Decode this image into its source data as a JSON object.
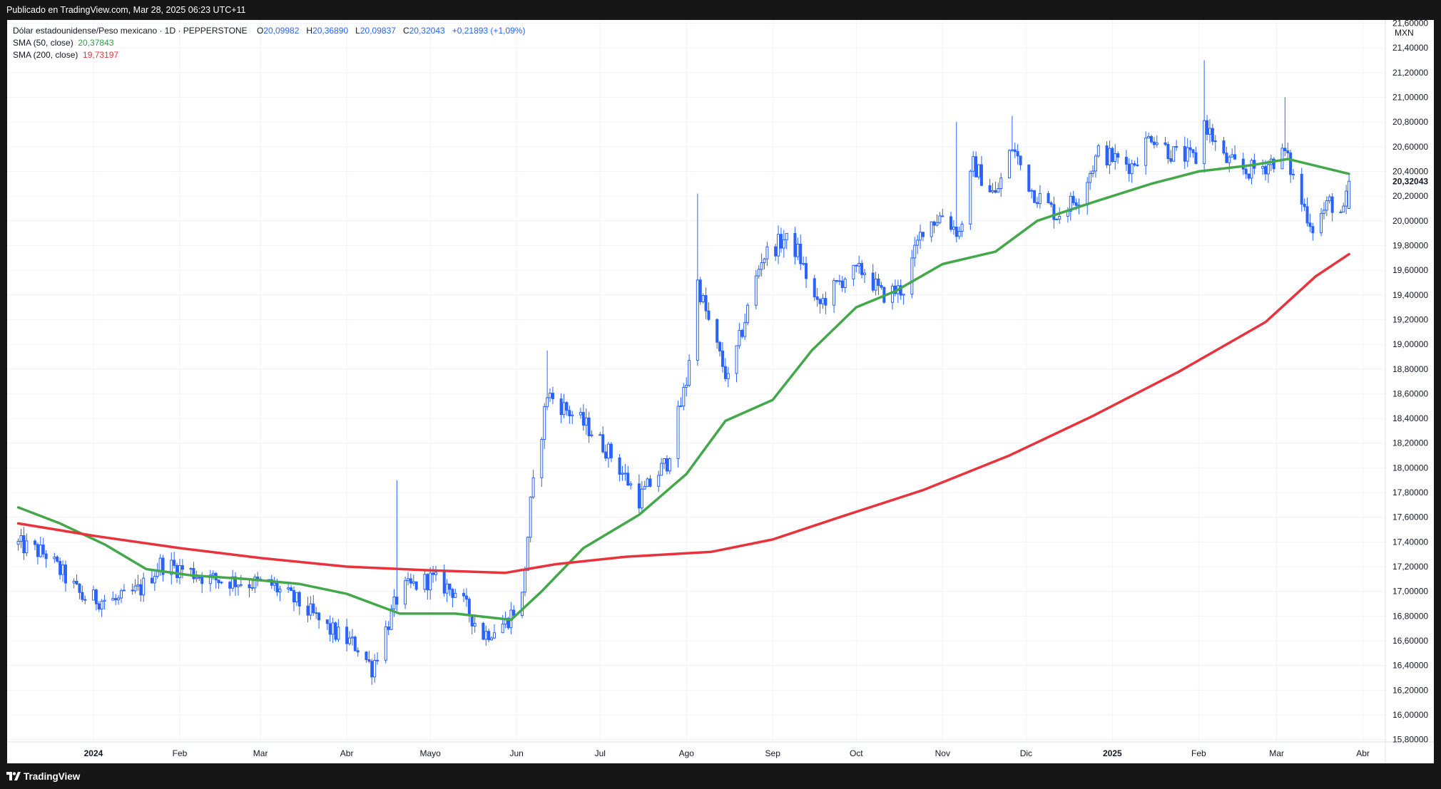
{
  "header": {
    "published": "Publicado en TradingView.com, Mar 28, 2025 06:23 UTC+11"
  },
  "legend": {
    "symbol": "Dólar estadounidense/Peso mexicano · 1D · PEPPERSTONE",
    "o_label": "O",
    "o_value": "20,09982",
    "h_label": "H",
    "h_value": "20,36890",
    "l_label": "L",
    "l_value": "20,09837",
    "c_label": "C",
    "c_value": "20,32043",
    "change": "+0,21893 (+1,09%)",
    "sma50_label": "SMA (50, close)",
    "sma50_value": "20,37843",
    "sma200_label": "SMA (200, close)",
    "sma200_value": "19,73197"
  },
  "footer": {
    "brand": "TradingView"
  },
  "colors": {
    "candle": "#2962ff",
    "sma50": "#43a84a",
    "sma200": "#e8323c",
    "grid": "#f0f3fa",
    "price_label_bg": "#ffffff"
  },
  "chart_data": {
    "type": "candlestick",
    "currency": "MXN",
    "y_ticks": [
      "15,80000",
      "16,00000",
      "16,20000",
      "16,40000",
      "16,60000",
      "16,80000",
      "17,00000",
      "17,20000",
      "17,40000",
      "17,60000",
      "17,80000",
      "18,00000",
      "18,20000",
      "18,40000",
      "18,60000",
      "18,80000",
      "19,00000",
      "19,20000",
      "19,40000",
      "19,60000",
      "19,80000",
      "20,00000",
      "20,20000",
      "20,40000",
      "20,60000",
      "20,80000",
      "21,00000",
      "21,20000",
      "21,40000",
      "21,60000"
    ],
    "ylim": [
      15.75,
      21.75
    ],
    "x_ticks": [
      {
        "label": "2024",
        "date": "2024-01-01",
        "bold": true
      },
      {
        "label": "Feb",
        "date": "2024-02-01"
      },
      {
        "label": "Mar",
        "date": "2024-03-01"
      },
      {
        "label": "Abr",
        "date": "2024-04-01"
      },
      {
        "label": "Mayo",
        "date": "2024-05-01"
      },
      {
        "label": "Jun",
        "date": "2024-06-01"
      },
      {
        "label": "Jul",
        "date": "2024-07-01"
      },
      {
        "label": "Ago",
        "date": "2024-08-01"
      },
      {
        "label": "Sep",
        "date": "2024-09-01"
      },
      {
        "label": "Oct",
        "date": "2024-10-01"
      },
      {
        "label": "Nov",
        "date": "2024-11-01"
      },
      {
        "label": "Dic",
        "date": "2024-12-01"
      },
      {
        "label": "2025",
        "date": "2025-01-01",
        "bold": true
      },
      {
        "label": "Feb",
        "date": "2025-02-01"
      },
      {
        "label": "Mar",
        "date": "2025-03-01"
      },
      {
        "label": "Abr",
        "date": "2025-04-01"
      }
    ],
    "last_price_label": "20,32043",
    "last_price": 20.32043,
    "close_path": [
      [
        "2023-12-05",
        17.38
      ],
      [
        "2023-12-15",
        17.3
      ],
      [
        "2023-12-28",
        16.95
      ],
      [
        "2024-01-10",
        16.92
      ],
      [
        "2024-01-18",
        17.02
      ],
      [
        "2024-01-25",
        17.22
      ],
      [
        "2024-02-02",
        17.18
      ],
      [
        "2024-02-12",
        17.1
      ],
      [
        "2024-02-22",
        17.08
      ],
      [
        "2024-03-05",
        17.05
      ],
      [
        "2024-03-15",
        16.9
      ],
      [
        "2024-03-25",
        16.7
      ],
      [
        "2024-04-05",
        16.55
      ],
      [
        "2024-04-10",
        16.38
      ],
      [
        "2024-04-20",
        17.0
      ],
      [
        "2024-05-01",
        17.1
      ],
      [
        "2024-05-10",
        17.0
      ],
      [
        "2024-05-20",
        16.65
      ],
      [
        "2024-05-28",
        16.75
      ],
      [
        "2024-06-03",
        16.95
      ],
      [
        "2024-06-06",
        17.7
      ],
      [
        "2024-06-12",
        18.6
      ],
      [
        "2024-06-20",
        18.45
      ],
      [
        "2024-06-28",
        18.3
      ],
      [
        "2024-07-05",
        18.1
      ],
      [
        "2024-07-15",
        17.75
      ],
      [
        "2024-07-25",
        18.05
      ],
      [
        "2024-08-01",
        18.7
      ],
      [
        "2024-08-05",
        19.5
      ],
      [
        "2024-08-10",
        19.1
      ],
      [
        "2024-08-16",
        18.7
      ],
      [
        "2024-08-22",
        19.2
      ],
      [
        "2024-08-28",
        19.7
      ],
      [
        "2024-09-05",
        19.85
      ],
      [
        "2024-09-10",
        19.75
      ],
      [
        "2024-09-17",
        19.3
      ],
      [
        "2024-09-27",
        19.55
      ],
      [
        "2024-10-04",
        19.6
      ],
      [
        "2024-10-10",
        19.4
      ],
      [
        "2024-10-18",
        19.45
      ],
      [
        "2024-10-25",
        19.95
      ],
      [
        "2024-11-01",
        20.05
      ],
      [
        "2024-11-07",
        19.9
      ],
      [
        "2024-11-12",
        20.45
      ],
      [
        "2024-11-20",
        20.2
      ],
      [
        "2024-11-26",
        20.6
      ],
      [
        "2024-12-03",
        20.25
      ],
      [
        "2024-12-12",
        20.05
      ],
      [
        "2024-12-20",
        20.2
      ],
      [
        "2024-12-27",
        20.55
      ],
      [
        "2025-01-08",
        20.45
      ],
      [
        "2025-01-15",
        20.7
      ],
      [
        "2025-01-22",
        20.55
      ],
      [
        "2025-01-31",
        20.5
      ],
      [
        "2025-02-03",
        20.8
      ],
      [
        "2025-02-10",
        20.5
      ],
      [
        "2025-02-18",
        20.4
      ],
      [
        "2025-02-25",
        20.45
      ],
      [
        "2025-03-04",
        20.55
      ],
      [
        "2025-03-10",
        20.15
      ],
      [
        "2025-03-14",
        19.95
      ],
      [
        "2025-03-20",
        20.15
      ],
      [
        "2025-03-25",
        20.05
      ],
      [
        "2025-03-27",
        20.32
      ]
    ],
    "spikes": [
      {
        "date": "2024-04-19",
        "high": 17.9
      },
      {
        "date": "2024-08-05",
        "high": 20.22
      },
      {
        "date": "2024-06-12",
        "high": 18.95
      },
      {
        "date": "2025-02-03",
        "high": 21.3
      },
      {
        "date": "2025-03-04",
        "high": 21.0
      },
      {
        "date": "2024-11-06",
        "high": 20.8
      },
      {
        "date": "2024-11-26",
        "high": 20.85
      }
    ],
    "series": [
      {
        "name": "SMA (50, close)",
        "color": "#43a84a",
        "points": [
          [
            "2023-12-05",
            17.68
          ],
          [
            "2023-12-20",
            17.55
          ],
          [
            "2024-01-05",
            17.38
          ],
          [
            "2024-01-20",
            17.18
          ],
          [
            "2024-02-05",
            17.13
          ],
          [
            "2024-02-25",
            17.1
          ],
          [
            "2024-03-15",
            17.06
          ],
          [
            "2024-04-01",
            16.98
          ],
          [
            "2024-04-20",
            16.82
          ],
          [
            "2024-05-10",
            16.82
          ],
          [
            "2024-05-30",
            16.77
          ],
          [
            "2024-06-10",
            17.0
          ],
          [
            "2024-06-25",
            17.35
          ],
          [
            "2024-07-15",
            17.62
          ],
          [
            "2024-08-01",
            17.95
          ],
          [
            "2024-08-15",
            18.38
          ],
          [
            "2024-09-01",
            18.55
          ],
          [
            "2024-09-15",
            18.95
          ],
          [
            "2024-10-01",
            19.3
          ],
          [
            "2024-10-15",
            19.43
          ],
          [
            "2024-11-01",
            19.65
          ],
          [
            "2024-11-20",
            19.75
          ],
          [
            "2024-12-05",
            20.0
          ],
          [
            "2024-12-25",
            20.15
          ],
          [
            "2025-01-15",
            20.3
          ],
          [
            "2025-02-01",
            20.4
          ],
          [
            "2025-02-20",
            20.45
          ],
          [
            "2025-03-05",
            20.5
          ],
          [
            "2025-03-27",
            20.38
          ]
        ]
      },
      {
        "name": "SMA (200, close)",
        "color": "#e8323c",
        "points": [
          [
            "2023-12-05",
            17.55
          ],
          [
            "2024-01-01",
            17.45
          ],
          [
            "2024-02-01",
            17.35
          ],
          [
            "2024-03-01",
            17.27
          ],
          [
            "2024-04-01",
            17.2
          ],
          [
            "2024-05-01",
            17.17
          ],
          [
            "2024-05-28",
            17.15
          ],
          [
            "2024-06-15",
            17.22
          ],
          [
            "2024-07-10",
            17.28
          ],
          [
            "2024-08-10",
            17.32
          ],
          [
            "2024-09-01",
            17.42
          ],
          [
            "2024-09-25",
            17.6
          ],
          [
            "2024-10-25",
            17.82
          ],
          [
            "2024-11-25",
            18.1
          ],
          [
            "2024-12-25",
            18.42
          ],
          [
            "2025-01-25",
            18.78
          ],
          [
            "2025-02-25",
            19.18
          ],
          [
            "2025-03-15",
            19.55
          ],
          [
            "2025-03-27",
            19.73
          ]
        ]
      }
    ]
  }
}
